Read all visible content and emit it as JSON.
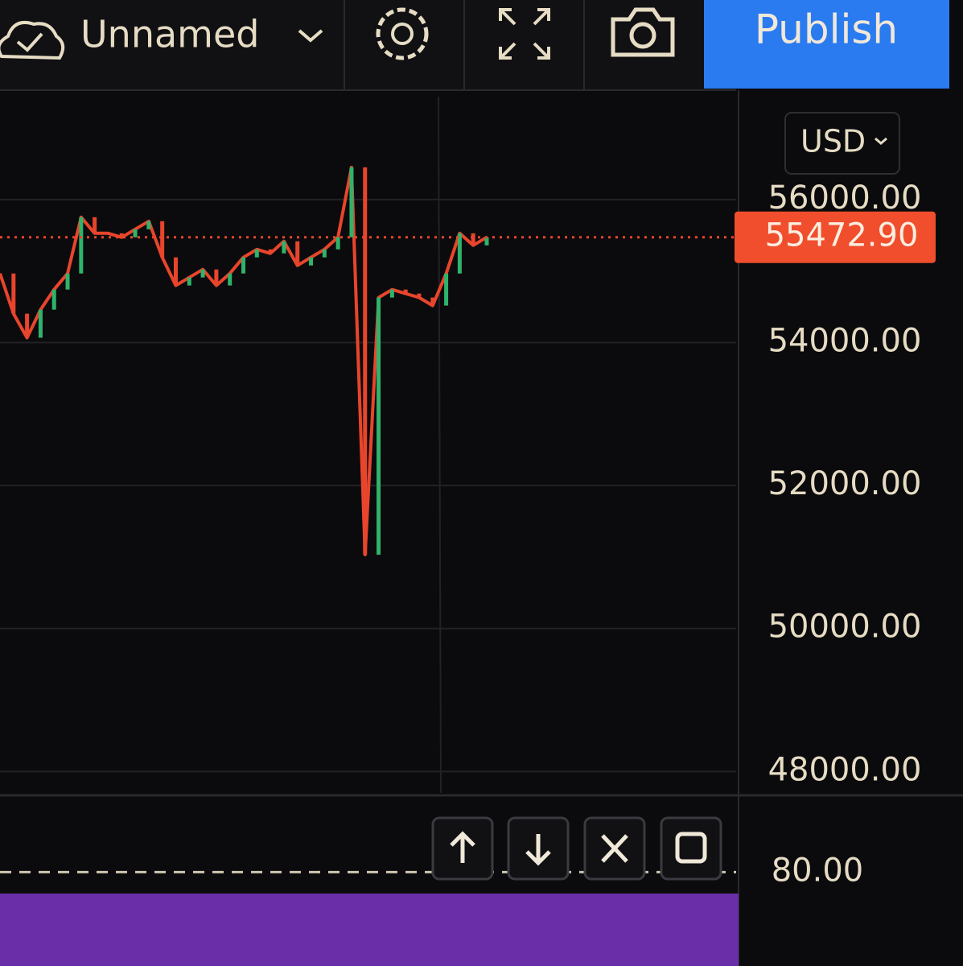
{
  "toolbar": {
    "layout_name": "Unnamed",
    "publish": "Publish"
  },
  "currency": "USD",
  "chart_data": {
    "type": "line",
    "color": "#e8452c",
    "up_color": "#2fb36b",
    "values": [
      54966,
      54404,
      54067,
      54460,
      54741,
      54966,
      55753,
      55528,
      55528,
      55472,
      55584,
      55697,
      55191,
      54798,
      54910,
      55022,
      54798,
      54966,
      55191,
      55303,
      55247,
      55416,
      55078,
      55191,
      55303,
      55472,
      56450,
      51032,
      54629,
      54741,
      54685,
      54629,
      54517,
      54966,
      55528,
      55359,
      55472.9
    ],
    "current_price": {
      "value": 55472.9,
      "label": "55472.90"
    },
    "ylim": [
      47700,
      57440
    ],
    "yticks": [
      {
        "value": 48000,
        "label": "48000.00"
      },
      {
        "value": 50000,
        "label": "50000.00"
      },
      {
        "value": 52000,
        "label": "52000.00"
      },
      {
        "value": 54000,
        "label": "54000.00"
      },
      {
        "value": 56000,
        "label": "56000.00"
      }
    ],
    "grid": true
  },
  "indicator": {
    "ylim": [
      55,
      100
    ],
    "yticks": [
      {
        "value": 80,
        "label": "80.00"
      }
    ]
  }
}
